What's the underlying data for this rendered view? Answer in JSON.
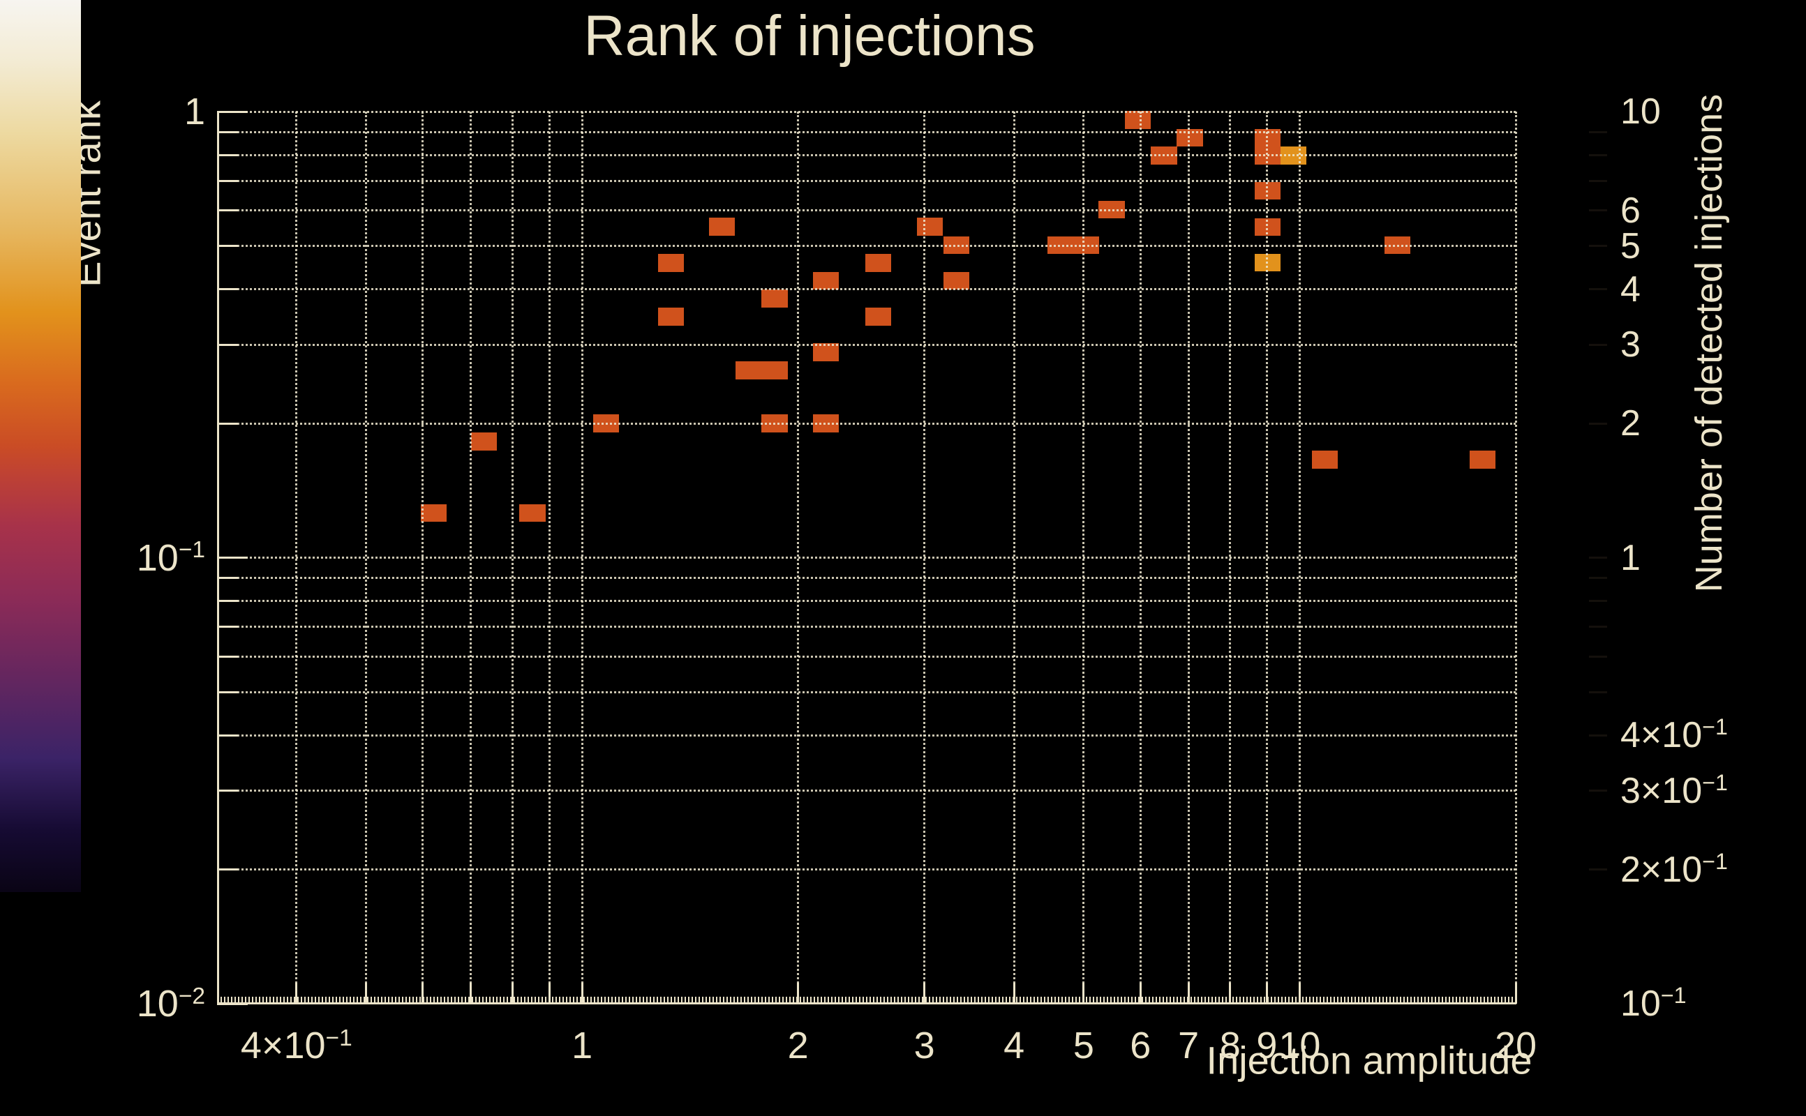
{
  "title": "Rank of injections",
  "x_axis": {
    "title": "Injection amplitude",
    "scale": "log",
    "min": 0.31,
    "max": 20,
    "gridlines": [
      0.4,
      0.5,
      0.6,
      0.7,
      0.8,
      0.9,
      1,
      2,
      3,
      4,
      5,
      6,
      7,
      8,
      9,
      10,
      20
    ],
    "tick_labels": [
      {
        "v": 0.4,
        "t": "4×10",
        "s": "−1"
      },
      {
        "v": 1,
        "t": "1"
      },
      {
        "v": 2,
        "t": "2"
      },
      {
        "v": 3,
        "t": "3"
      },
      {
        "v": 4,
        "t": "4"
      },
      {
        "v": 5,
        "t": "5"
      },
      {
        "v": 6,
        "t": "6"
      },
      {
        "v": 7,
        "t": "7"
      },
      {
        "v": 8,
        "t": "8"
      },
      {
        "v": 9,
        "t": "9"
      },
      {
        "v": 10,
        "t": "10"
      },
      {
        "v": 20,
        "t": "20"
      }
    ]
  },
  "y_axis": {
    "title": "Event rank",
    "scale": "log",
    "min": 0.01,
    "max": 1,
    "gridlines": [
      0.02,
      0.03,
      0.04,
      0.05,
      0.06,
      0.07,
      0.08,
      0.09,
      0.1,
      0.2,
      0.3,
      0.4,
      0.5,
      0.6,
      0.7,
      0.8,
      0.9,
      1
    ],
    "tick_labels": [
      {
        "v": 1,
        "t": "1"
      },
      {
        "v": 0.1,
        "t": "10",
        "s": "−1"
      },
      {
        "v": 0.01,
        "t": "10",
        "s": "−2"
      }
    ]
  },
  "colorbar": {
    "title": "Number of detected injections",
    "scale": "log",
    "min": 0.1,
    "max": 10,
    "tick_labels": [
      {
        "v": 10,
        "t": "10"
      },
      {
        "v": 6,
        "t": "6"
      },
      {
        "v": 5,
        "t": "5"
      },
      {
        "v": 4,
        "t": "4"
      },
      {
        "v": 3,
        "t": "3"
      },
      {
        "v": 2,
        "t": "2"
      },
      {
        "v": 1,
        "t": "1"
      },
      {
        "v": 0.4,
        "t": "4×10",
        "s": "−1"
      },
      {
        "v": 0.3,
        "t": "3×10",
        "s": "−1"
      },
      {
        "v": 0.2,
        "t": "2×10",
        "s": "−1"
      },
      {
        "v": 0.1,
        "t": "10",
        "s": "−1"
      }
    ],
    "minor_ticks": [
      9,
      8,
      7,
      6,
      5,
      4,
      3,
      2,
      1,
      0.9,
      0.8,
      0.7,
      0.6,
      0.5,
      0.4,
      0.3,
      0.2
    ],
    "gradient": [
      {
        "p": 0.0,
        "c": "#0a0415"
      },
      {
        "p": 0.07,
        "c": "#160b33"
      },
      {
        "p": 0.15,
        "c": "#3b2367"
      },
      {
        "p": 0.24,
        "c": "#64265f"
      },
      {
        "p": 0.33,
        "c": "#8c2b57"
      },
      {
        "p": 0.41,
        "c": "#a7324a"
      },
      {
        "p": 0.47,
        "c": "#bf4233"
      },
      {
        "p": 0.5,
        "c": "#ca4c25"
      },
      {
        "p": 0.57,
        "c": "#d96a1e"
      },
      {
        "p": 0.65,
        "c": "#e2921c"
      },
      {
        "p": 0.74,
        "c": "#e6b65e"
      },
      {
        "p": 0.85,
        "c": "#edd9a0"
      },
      {
        "p": 0.93,
        "c": "#f3ebd3"
      },
      {
        "p": 1.0,
        "c": "#f7f5f0"
      }
    ]
  },
  "chart_data": {
    "type": "heatmap",
    "title": "Rank of injections",
    "xlabel": "Injection amplitude",
    "ylabel": "Event rank",
    "zlabel": "Number of detected injections",
    "log_x": true,
    "log_y": true,
    "log_z": true,
    "x_range": [
      0.31,
      20
    ],
    "y_range": [
      0.01,
      1
    ],
    "z_range": [
      0.1,
      10
    ],
    "bins": {
      "nx": 50,
      "ny": 50
    },
    "count_colors": {
      "1": "#d0521c",
      "2": "#e2921c"
    },
    "cells": [
      {
        "x": 0.621,
        "y": 0.126,
        "n": 1
      },
      {
        "x": 0.73,
        "y": 0.182,
        "n": 1
      },
      {
        "x": 0.853,
        "y": 0.126,
        "n": 1
      },
      {
        "x": 1.081,
        "y": 0.2,
        "n": 1
      },
      {
        "x": 1.331,
        "y": 0.458,
        "n": 1
      },
      {
        "x": 1.331,
        "y": 0.347,
        "n": 1
      },
      {
        "x": 1.568,
        "y": 0.552,
        "n": 1
      },
      {
        "x": 1.704,
        "y": 0.263,
        "n": 1
      },
      {
        "x": 1.855,
        "y": 0.263,
        "n": 1
      },
      {
        "x": 1.855,
        "y": 0.381,
        "n": 1
      },
      {
        "x": 1.855,
        "y": 0.2,
        "n": 1
      },
      {
        "x": 2.188,
        "y": 0.418,
        "n": 1
      },
      {
        "x": 2.188,
        "y": 0.289,
        "n": 1
      },
      {
        "x": 2.188,
        "y": 0.2,
        "n": 1
      },
      {
        "x": 2.588,
        "y": 0.458,
        "n": 1
      },
      {
        "x": 2.588,
        "y": 0.347,
        "n": 1
      },
      {
        "x": 3.054,
        "y": 0.552,
        "n": 1
      },
      {
        "x": 3.323,
        "y": 0.502,
        "n": 1
      },
      {
        "x": 3.323,
        "y": 0.418,
        "n": 1
      },
      {
        "x": 4.643,
        "y": 0.502,
        "n": 1
      },
      {
        "x": 5.036,
        "y": 0.502,
        "n": 1
      },
      {
        "x": 5.47,
        "y": 0.603,
        "n": 1
      },
      {
        "x": 5.95,
        "y": 0.957,
        "n": 1
      },
      {
        "x": 6.47,
        "y": 0.797,
        "n": 1
      },
      {
        "x": 7.03,
        "y": 0.874,
        "n": 1
      },
      {
        "x": 9.02,
        "y": 0.874,
        "n": 1
      },
      {
        "x": 9.02,
        "y": 0.797,
        "n": 1
      },
      {
        "x": 9.02,
        "y": 0.665,
        "n": 1
      },
      {
        "x": 9.02,
        "y": 0.551,
        "n": 1
      },
      {
        "x": 9.02,
        "y": 0.459,
        "n": 2
      },
      {
        "x": 9.81,
        "y": 0.797,
        "n": 2
      },
      {
        "x": 10.85,
        "y": 0.166,
        "n": 1
      },
      {
        "x": 13.68,
        "y": 0.502,
        "n": 1
      },
      {
        "x": 18.0,
        "y": 0.166,
        "n": 1
      }
    ]
  },
  "styles": {
    "background": "#000000",
    "text_color": "#ece4c9",
    "grid_color": "#efe7cf",
    "axis_color": "#ece4c9"
  }
}
